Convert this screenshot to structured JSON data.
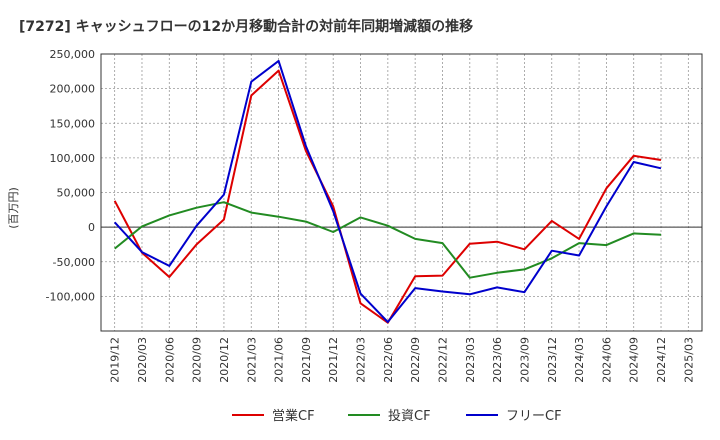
{
  "chart_data": {
    "type": "line",
    "title": "[7272]  キャッシュフローの12か月移動合計の対前年同期増減額の推移",
    "ylabel": "(百万円)",
    "xlabel": "",
    "ylim": [
      -150000,
      250000
    ],
    "yticks": [
      250000,
      200000,
      150000,
      100000,
      50000,
      0,
      -50000,
      -100000
    ],
    "ytick_labels": [
      "250,000",
      "200,000",
      "150,000",
      "100,000",
      "50,000",
      "0",
      "-50,000",
      "-100,000"
    ],
    "categories": [
      "2019/12",
      "2020/03",
      "2020/06",
      "2020/09",
      "2020/12",
      "2021/03",
      "2021/06",
      "2021/09",
      "2021/12",
      "2022/03",
      "2022/06",
      "2022/09",
      "2022/12",
      "2023/03",
      "2023/06",
      "2023/09",
      "2023/12",
      "2024/03",
      "2024/06",
      "2024/09",
      "2024/12",
      "2025/03"
    ],
    "grid": true,
    "legend_position": "bottom",
    "series": [
      {
        "name": "営業CF",
        "color": "#dd0000",
        "values": [
          38000,
          -37000,
          -72000,
          -25000,
          11000,
          190000,
          226000,
          110000,
          30000,
          -110000,
          -138000,
          -71000,
          -70000,
          -24000,
          -21000,
          -32000,
          9000,
          -17000,
          56000,
          103000,
          97000,
          null
        ]
      },
      {
        "name": "投資CF",
        "color": "#228b22",
        "values": [
          -31000,
          1000,
          17000,
          28000,
          36000,
          21000,
          15000,
          8000,
          -7000,
          14000,
          2000,
          -17000,
          -23000,
          -73000,
          -66000,
          -61000,
          -45000,
          -23000,
          -26000,
          -9000,
          -11000,
          null
        ]
      },
      {
        "name": "フリーCF",
        "color": "#0000cc",
        "values": [
          7000,
          -36000,
          -56000,
          2000,
          47000,
          210000,
          240000,
          117000,
          23000,
          -96000,
          -137000,
          -88000,
          -93000,
          -97000,
          -87000,
          -94000,
          -34000,
          -41000,
          30000,
          94000,
          85000,
          null
        ]
      }
    ]
  }
}
